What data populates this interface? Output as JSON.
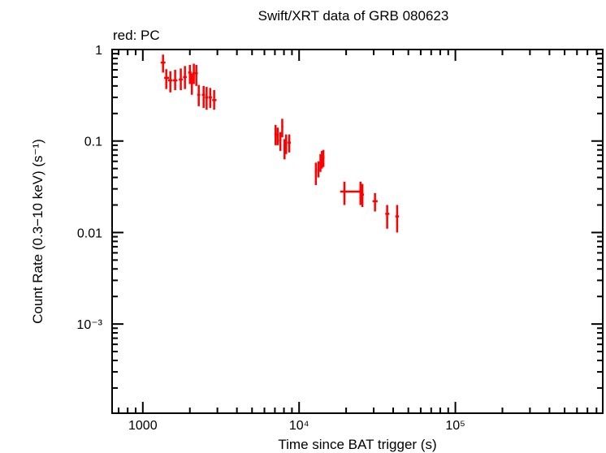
{
  "chart_data": {
    "type": "scatter",
    "title": "Swift/XRT data of GRB 080623",
    "subtitle": "red: PC",
    "xlabel": "Time since BAT trigger (s)",
    "ylabel": "Count Rate (0.3−10 keV) (s⁻¹)",
    "x_scale": "log",
    "y_scale": "log",
    "xlim": [
      636,
      877000
    ],
    "ylim": [
      0.000106,
      1.0
    ],
    "x_ticks": [
      {
        "value": 1000,
        "label": "1000"
      },
      {
        "value": 10000,
        "label": "10⁴"
      },
      {
        "value": 100000,
        "label": "10⁵"
      }
    ],
    "y_ticks": [
      {
        "value": 1,
        "label": "1"
      },
      {
        "value": 0.1,
        "label": "0.1"
      },
      {
        "value": 0.01,
        "label": "0.01"
      },
      {
        "value": 0.001,
        "label": "10⁻³"
      }
    ],
    "grid": false,
    "series": [
      {
        "name": "PC",
        "color": "#ff0000",
        "points": [
          {
            "t": 1347,
            "t_lo": 1300,
            "t_hi": 1395,
            "rate": 0.72,
            "rate_lo": 0.56,
            "rate_hi": 0.88
          },
          {
            "t": 1413,
            "t_lo": 1370,
            "t_hi": 1470,
            "rate": 0.49,
            "rate_lo": 0.37,
            "rate_hi": 0.61
          },
          {
            "t": 1500,
            "t_lo": 1450,
            "t_hi": 1550,
            "rate": 0.46,
            "rate_lo": 0.34,
            "rate_hi": 0.58
          },
          {
            "t": 1610,
            "t_lo": 1560,
            "t_hi": 1665,
            "rate": 0.46,
            "rate_lo": 0.36,
            "rate_hi": 0.6
          },
          {
            "t": 1750,
            "t_lo": 1700,
            "t_hi": 1800,
            "rate": 0.47,
            "rate_lo": 0.36,
            "rate_hi": 0.62
          },
          {
            "t": 1860,
            "t_lo": 1810,
            "t_hi": 1910,
            "rate": 0.5,
            "rate_lo": 0.37,
            "rate_hi": 0.66
          },
          {
            "t": 2000,
            "t_lo": 1950,
            "t_hi": 2050,
            "rate": 0.56,
            "rate_lo": 0.42,
            "rate_hi": 0.68
          },
          {
            "t": 2060,
            "t_lo": 2020,
            "t_hi": 2100,
            "rate": 0.43,
            "rate_lo": 0.32,
            "rate_hi": 0.55
          },
          {
            "t": 2120,
            "t_lo": 2080,
            "t_hi": 2170,
            "rate": 0.55,
            "rate_lo": 0.42,
            "rate_hi": 0.7
          },
          {
            "t": 2200,
            "t_lo": 2160,
            "t_hi": 2250,
            "rate": 0.55,
            "rate_lo": 0.4,
            "rate_hi": 0.68
          },
          {
            "t": 2280,
            "t_lo": 2230,
            "t_hi": 2330,
            "rate": 0.32,
            "rate_lo": 0.24,
            "rate_hi": 0.41
          },
          {
            "t": 2450,
            "t_lo": 2390,
            "t_hi": 2500,
            "rate": 0.32,
            "rate_lo": 0.23,
            "rate_hi": 0.4
          },
          {
            "t": 2560,
            "t_lo": 2500,
            "t_hi": 2620,
            "rate": 0.3,
            "rate_lo": 0.22,
            "rate_hi": 0.39
          },
          {
            "t": 2700,
            "t_lo": 2640,
            "t_hi": 2770,
            "rate": 0.3,
            "rate_lo": 0.23,
            "rate_hi": 0.38
          },
          {
            "t": 2860,
            "t_lo": 2780,
            "t_hi": 2960,
            "rate": 0.28,
            "rate_lo": 0.22,
            "rate_hi": 0.36
          },
          {
            "t": 7070,
            "t_lo": 6950,
            "t_hi": 7200,
            "rate": 0.119,
            "rate_lo": 0.09,
            "rate_hi": 0.15
          },
          {
            "t": 7300,
            "t_lo": 7180,
            "t_hi": 7420,
            "rate": 0.117,
            "rate_lo": 0.09,
            "rate_hi": 0.14
          },
          {
            "t": 7590,
            "t_lo": 7450,
            "t_hi": 7700,
            "rate": 0.102,
            "rate_lo": 0.078,
            "rate_hi": 0.125
          },
          {
            "t": 7800,
            "t_lo": 7700,
            "t_hi": 7920,
            "rate": 0.144,
            "rate_lo": 0.11,
            "rate_hi": 0.175
          },
          {
            "t": 8070,
            "t_lo": 7950,
            "t_hi": 8180,
            "rate": 0.084,
            "rate_lo": 0.063,
            "rate_hi": 0.105
          },
          {
            "t": 8260,
            "t_lo": 8150,
            "t_hi": 8400,
            "rate": 0.096,
            "rate_lo": 0.072,
            "rate_hi": 0.118
          },
          {
            "t": 8650,
            "t_lo": 8450,
            "t_hi": 8850,
            "rate": 0.096,
            "rate_lo": 0.075,
            "rate_hi": 0.118
          },
          {
            "t": 12800,
            "t_lo": 12600,
            "t_hi": 13000,
            "rate": 0.046,
            "rate_lo": 0.033,
            "rate_hi": 0.058
          },
          {
            "t": 13300,
            "t_lo": 13100,
            "t_hi": 13500,
            "rate": 0.049,
            "rate_lo": 0.04,
            "rate_hi": 0.06
          },
          {
            "t": 13700,
            "t_lo": 13500,
            "t_hi": 13900,
            "rate": 0.057,
            "rate_lo": 0.046,
            "rate_hi": 0.072
          },
          {
            "t": 14000,
            "t_lo": 13800,
            "t_hi": 14200,
            "rate": 0.063,
            "rate_lo": 0.05,
            "rate_hi": 0.078
          },
          {
            "t": 14300,
            "t_lo": 14100,
            "t_hi": 14550,
            "rate": 0.066,
            "rate_lo": 0.052,
            "rate_hi": 0.08
          },
          {
            "t": 19500,
            "t_lo": 18300,
            "t_hi": 24400,
            "rate": 0.028,
            "rate_lo": 0.02,
            "rate_hi": 0.036
          },
          {
            "t": 24700,
            "t_lo": 24300,
            "t_hi": 25100,
            "rate": 0.028,
            "rate_lo": 0.02,
            "rate_hi": 0.036
          },
          {
            "t": 25400,
            "t_lo": 25000,
            "t_hi": 26000,
            "rate": 0.026,
            "rate_lo": 0.019,
            "rate_hi": 0.034
          },
          {
            "t": 30600,
            "t_lo": 29500,
            "t_hi": 31800,
            "rate": 0.022,
            "rate_lo": 0.017,
            "rate_hi": 0.027
          },
          {
            "t": 36600,
            "t_lo": 35600,
            "t_hi": 37800,
            "rate": 0.016,
            "rate_lo": 0.011,
            "rate_hi": 0.02
          },
          {
            "t": 42400,
            "t_lo": 41300,
            "t_hi": 43600,
            "rate": 0.015,
            "rate_lo": 0.01,
            "rate_hi": 0.02
          }
        ]
      }
    ]
  }
}
